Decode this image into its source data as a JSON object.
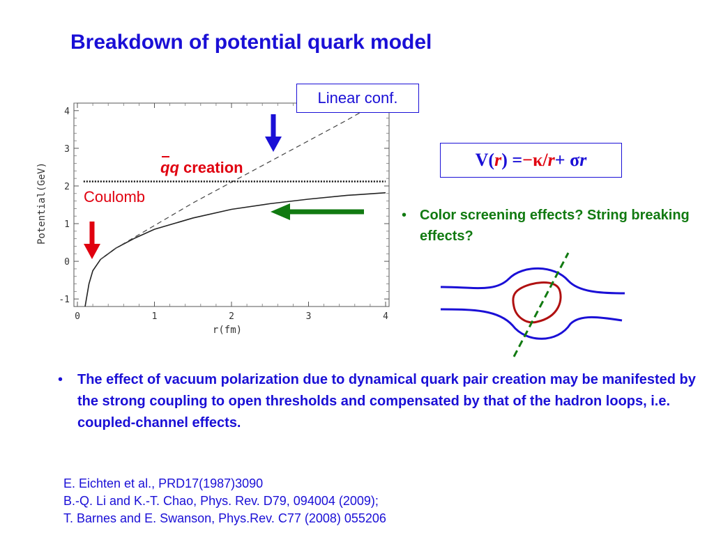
{
  "slide": {
    "title": "Breakdown of potential quark model"
  },
  "plot": {
    "callout_label": "Linear conf.",
    "coulomb_label": "Coulomb",
    "qq_label": "qq",
    "creation_label": " creation"
  },
  "formula": {
    "v": "V(",
    "r1": "r",
    "eq": ") = ",
    "minus_kappa": "−κ/",
    "r2": "r",
    "plus_sigma": " + σ ",
    "r3": "r"
  },
  "bullets": {
    "screening": "Color screening effects? String breaking effects?",
    "main": "The effect of vacuum polarization due to dynamical quark pair creation may be manifested by the strong coupling to open thresholds and compensated by that of the hadron loops, i.e. coupled-channel effects.",
    "bullet_char": "•"
  },
  "references": [
    "E. Eichten et al., PRD17(1987)3090",
    "B.-Q. Li and K.-T. Chao, Phys. Rev. D79, 094004 (2009);",
    "T. Barnes and E. Swanson, Phys.Rev. C77 (2008) 055206"
  ],
  "colors": {
    "title_blue": "#1a0fd6",
    "red": "#e0000f",
    "green": "#117a11",
    "loop_red": "#b01010",
    "arrow_blue": "#1a0fd6"
  },
  "chart_data": {
    "type": "line",
    "xlabel": "r(fm)",
    "ylabel": "Potential(GeV)",
    "xlim": [
      0,
      4
    ],
    "ylim": [
      -1.2,
      4.2
    ],
    "x_ticks": [
      "0",
      "1",
      "2",
      "3",
      "4"
    ],
    "y_ticks": [
      "-1",
      "0",
      "1",
      "2",
      "3",
      "4"
    ],
    "series": [
      {
        "style": "solid",
        "x": [
          0.1,
          0.15,
          0.2,
          0.3,
          0.4,
          0.5,
          0.75,
          1.0,
          1.5,
          2.0,
          2.5,
          3.0,
          3.5,
          4.0
        ],
        "y": [
          -1.2,
          -0.6,
          -0.25,
          0.05,
          0.2,
          0.35,
          0.62,
          0.85,
          1.15,
          1.38,
          1.53,
          1.65,
          1.75,
          1.82
        ]
      },
      {
        "style": "dashed",
        "x": [
          0.3,
          0.5,
          1.0,
          1.5,
          2.0,
          2.5,
          3.0,
          3.5,
          3.8
        ],
        "y": [
          0.05,
          0.35,
          0.95,
          1.55,
          2.1,
          2.65,
          3.2,
          3.75,
          4.1
        ]
      },
      {
        "style": "dotted",
        "x": [
          0.08,
          4.0
        ],
        "y": [
          2.12,
          2.12
        ]
      }
    ]
  }
}
